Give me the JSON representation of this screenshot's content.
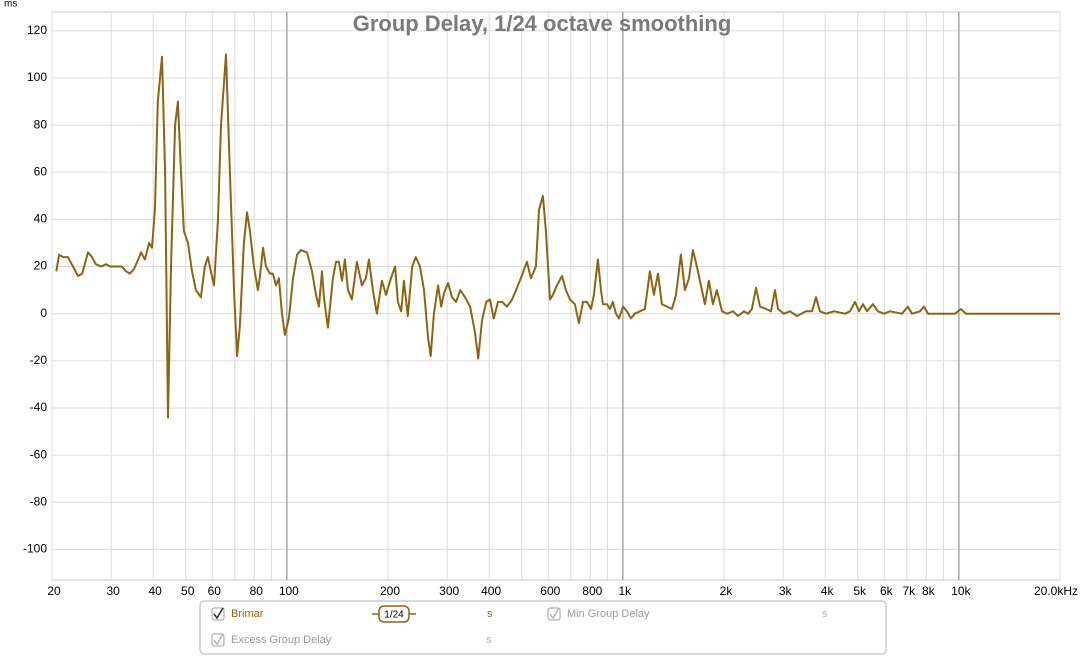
{
  "chart_data": {
    "type": "line",
    "title": "Group Delay, 1/24 octave smoothing",
    "y_unit": "ms",
    "log_x": true,
    "grid": true,
    "xlim": [
      20,
      20000
    ],
    "ylim": [
      -113,
      128
    ],
    "yticks": [
      -100,
      -80,
      -60,
      -40,
      -20,
      0,
      20,
      40,
      60,
      80,
      100,
      120
    ],
    "xticks": [
      20,
      30,
      40,
      50,
      60,
      {
        "value": 70,
        "label": null
      },
      80,
      {
        "value": 90,
        "label": null
      },
      100,
      200,
      300,
      400,
      {
        "value": 500,
        "label": null
      },
      600,
      {
        "value": 700,
        "label": null
      },
      800,
      {
        "value": 900,
        "label": null
      },
      {
        "value": 1000,
        "label": "1k"
      },
      {
        "value": 2000,
        "label": "2k"
      },
      {
        "value": 3000,
        "label": "3k"
      },
      {
        "value": 4000,
        "label": "4k"
      },
      {
        "value": 5000,
        "label": "5k"
      },
      {
        "value": 6000,
        "label": "6k"
      },
      {
        "value": 7000,
        "label": "7k"
      },
      {
        "value": 8000,
        "label": "8k"
      },
      {
        "value": 9000,
        "label": null
      },
      {
        "value": 10000,
        "label": "10k"
      },
      {
        "value": 20000,
        "label": "20.0kHz"
      }
    ],
    "x": [
      20.6,
      21.0,
      21.6,
      22.3,
      23.1,
      23.9,
      24.6,
      25.6,
      26.3,
      27.0,
      28.0,
      29.0,
      29.8,
      31.2,
      32.3,
      33.2,
      34.1,
      35.1,
      36.1,
      36.8,
      37.8,
      38.9,
      39.7,
      40.5,
      41.3,
      42.5,
      43.4,
      44.3,
      45.2,
      46.5,
      47.4,
      48.4,
      49.4,
      50.8,
      52.2,
      53.6,
      55.5,
      57.0,
      58.2,
      59.4,
      60.7,
      62.4,
      63.7,
      65.9,
      67.7,
      69.6,
      71.1,
      72.5,
      74.5,
      76.1,
      77.7,
      79.8,
      82.0,
      83.2,
      84.9,
      86.7,
      89.1,
      90.9,
      92.8,
      94.7,
      96.7,
      98.7,
      101.4,
      104.3,
      107.2,
      110.1,
      114.8,
      118.8,
      122.1,
      124.6,
      127.2,
      128.9,
      132.5,
      137.1,
      140.0,
      142.9,
      145.9,
      148.9,
      152.0,
      156.2,
      161.6,
      167.3,
      171.9,
      175.5,
      180.4,
      185.4,
      191.8,
      197.3,
      204,
      210,
      214,
      219,
      223,
      229,
      236,
      242,
      249,
      256,
      263,
      268,
      274,
      282,
      288,
      294,
      302,
      310,
      319,
      328,
      339,
      351,
      363,
      371,
      381,
      392,
      402,
      413,
      425,
      437,
      452,
      468,
      484,
      497,
      518,
      533,
      551,
      563,
      578,
      590,
      607,
      619,
      637,
      659,
      677,
      696,
      720,
      740,
      761,
      782,
      804,
      820,
      843,
      861,
      872,
      897,
      915,
      934,
      954,
      974,
      1001,
      1028,
      1057,
      1086,
      1124,
      1163,
      1204,
      1237,
      1272,
      1307,
      1353,
      1400,
      1439,
      1489,
      1530,
      1573,
      1616,
      1661,
      1707,
      1755,
      1804,
      1854,
      1905,
      1973,
      2042,
      2128,
      2202,
      2294,
      2358,
      2422,
      2490,
      2560,
      2668,
      2760,
      2836,
      2896,
      3016,
      3144,
      3298,
      3508,
      3656,
      3756,
      3860,
      4024,
      4250,
      4584,
      4742,
      4908,
      5044,
      5184,
      5328,
      5550,
      5744,
      5986,
      6236,
      6772,
      7054,
      7252,
      7660,
      7874,
      8092,
      8786,
      9736,
      10144,
      10498,
      11558,
      13252,
      20000
    ],
    "series": [
      {
        "name": "Brimar",
        "color": "#8c6512",
        "values": [
          18,
          25,
          24,
          24,
          20,
          16,
          17,
          26,
          24,
          21,
          20,
          21,
          20,
          20,
          20,
          18,
          17,
          19,
          23,
          26,
          23,
          30,
          28,
          45,
          90,
          109,
          60,
          -44,
          20,
          80,
          90,
          60,
          35,
          30,
          18,
          10,
          7,
          20,
          24,
          18,
          12,
          40,
          80,
          110,
          60,
          10,
          -18,
          -5,
          30,
          43,
          35,
          20,
          10,
          16,
          28,
          20,
          17,
          17,
          12,
          15,
          0,
          -9,
          -2,
          15,
          25,
          27,
          26,
          18,
          8,
          3,
          18,
          7,
          -6,
          15,
          22,
          22,
          14,
          23,
          10,
          6,
          22,
          12,
          15,
          23,
          10,
          0,
          14,
          8,
          15,
          20,
          5,
          1,
          14,
          -1,
          20,
          24,
          20,
          10,
          -10,
          -18,
          0,
          12,
          3,
          9,
          13,
          7,
          5,
          10,
          7,
          3,
          -8,
          -19,
          -3,
          5,
          6,
          -2,
          5,
          5,
          3,
          6,
          11,
          15,
          22,
          15,
          20,
          44,
          50,
          35,
          6,
          8,
          12,
          16,
          10,
          6,
          4,
          -4,
          5,
          5,
          2,
          8,
          23,
          10,
          4,
          4,
          2,
          5,
          0,
          -2,
          3,
          1,
          -2,
          0,
          1,
          2,
          18,
          8,
          17,
          4,
          3,
          2,
          8,
          25,
          10,
          15,
          27,
          20,
          12,
          4,
          14,
          4,
          10,
          1,
          0,
          1,
          -1,
          1,
          0,
          2,
          11,
          3,
          2,
          1,
          10,
          2,
          0,
          1,
          -1,
          1,
          1,
          7,
          1,
          0,
          1,
          0,
          1,
          5,
          1,
          4,
          1,
          4,
          1,
          0,
          1,
          0,
          3,
          0,
          1,
          3,
          0,
          0,
          0,
          2,
          0,
          0,
          0,
          0
        ]
      }
    ]
  },
  "controls": [
    {
      "label_from": "series",
      "checked": true,
      "smoothing": "1/24",
      "unit": "s"
    },
    {
      "label": "Min Group Delay",
      "checked": true,
      "unit": "s"
    },
    {
      "label": "Excess Group Delay",
      "checked": true,
      "unit": "s"
    }
  ]
}
